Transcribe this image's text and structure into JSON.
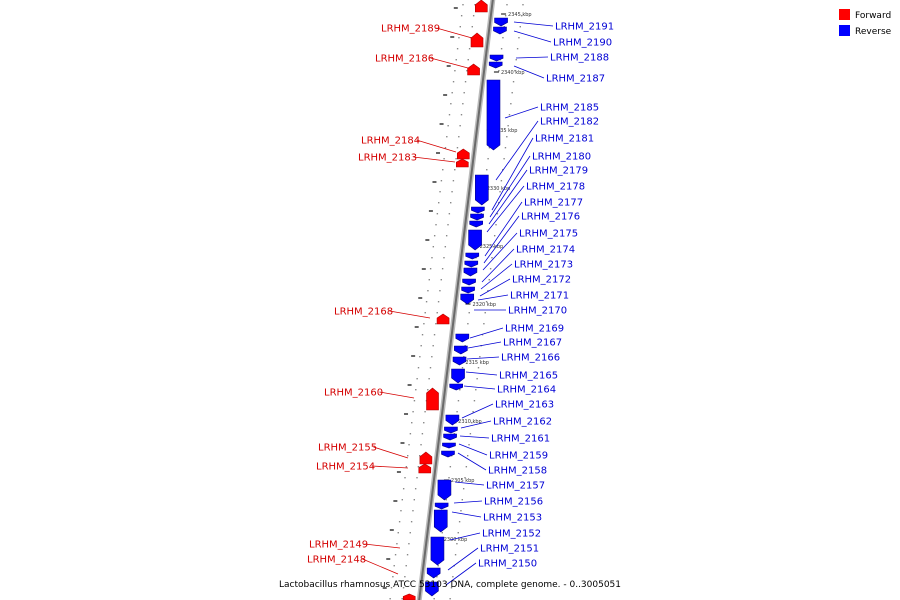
{
  "legend": [
    {
      "label": "Forward",
      "color": "#ff0000"
    },
    {
      "label": "Reverse",
      "color": "#0000ff"
    }
  ],
  "caption": "Lactobacillus rhamnosus ATCC 53103 DNA, complete genome. - 0..3005051",
  "ticks": [
    "2345 kbp",
    "2340 kbp",
    "2335 kbp",
    "2330 kbp",
    "2325 kbp",
    "2320 kbp",
    "2315 kbp",
    "2310 kbp",
    "2305 kbp",
    "2300 kbp"
  ],
  "forward_genes": [
    "LRHM_2189",
    "LRHM_2186",
    "LRHM_2184",
    "LRHM_2183",
    "LRHM_2168",
    "LRHM_2160",
    "LRHM_2155",
    "LRHM_2154",
    "LRHM_2149",
    "LRHM_2148"
  ],
  "reverse_genes": [
    "LRHM_2191",
    "LRHM_2190",
    "LRHM_2188",
    "LRHM_2187",
    "LRHM_2185",
    "LRHM_2182",
    "LRHM_2181",
    "LRHM_2180",
    "LRHM_2179",
    "LRHM_2178",
    "LRHM_2177",
    "LRHM_2176",
    "LRHM_2175",
    "LRHM_2174",
    "LRHM_2173",
    "LRHM_2172",
    "LRHM_2171",
    "LRHM_2170",
    "LRHM_2169",
    "LRHM_2167",
    "LRHM_2166",
    "LRHM_2165",
    "LRHM_2164",
    "LRHM_2163",
    "LRHM_2162",
    "LRHM_2161",
    "LRHM_2159",
    "LRHM_2158",
    "LRHM_2157",
    "LRHM_2156",
    "LRHM_2153",
    "LRHM_2152",
    "LRHM_2151",
    "LRHM_2150"
  ]
}
